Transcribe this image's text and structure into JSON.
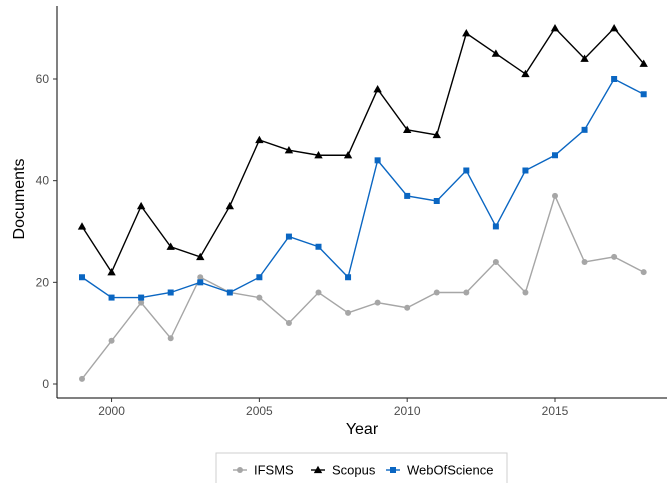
{
  "chart_data": {
    "type": "line",
    "xlabel": "Year",
    "ylabel": "Documents",
    "xlim": [
      1998.5,
      2018.5
    ],
    "ylim": [
      0,
      73
    ],
    "x_ticks": [
      2000,
      2005,
      2010,
      2015
    ],
    "y_ticks": [
      0,
      20,
      40,
      60
    ],
    "grid": false,
    "legend_position": "bottom",
    "x": [
      1999,
      2000,
      2001,
      2002,
      2003,
      2004,
      2005,
      2006,
      2007,
      2008,
      2009,
      2010,
      2011,
      2012,
      2013,
      2014,
      2015,
      2016,
      2017,
      2018
    ],
    "series": [
      {
        "name": "IFSMS",
        "color": "#a6a6a6",
        "marker": "circle",
        "values": [
          1,
          8.5,
          16,
          9,
          21,
          18,
          17,
          12,
          18,
          14,
          16,
          15,
          18,
          18,
          24,
          18,
          37,
          24,
          25,
          22
        ]
      },
      {
        "name": "Scopus",
        "color": "#000000",
        "marker": "triangle",
        "values": [
          31,
          22,
          35,
          27,
          25,
          35,
          48,
          46,
          45,
          45,
          58,
          50,
          49,
          69,
          65,
          61,
          70,
          64,
          70,
          63
        ]
      },
      {
        "name": "WebOfScience",
        "color": "#0a66c2",
        "marker": "square",
        "values": [
          21,
          17,
          17,
          18,
          20,
          18,
          21,
          29,
          27,
          21,
          44,
          37,
          36,
          42,
          31,
          42,
          45,
          50,
          60,
          57
        ]
      }
    ]
  }
}
